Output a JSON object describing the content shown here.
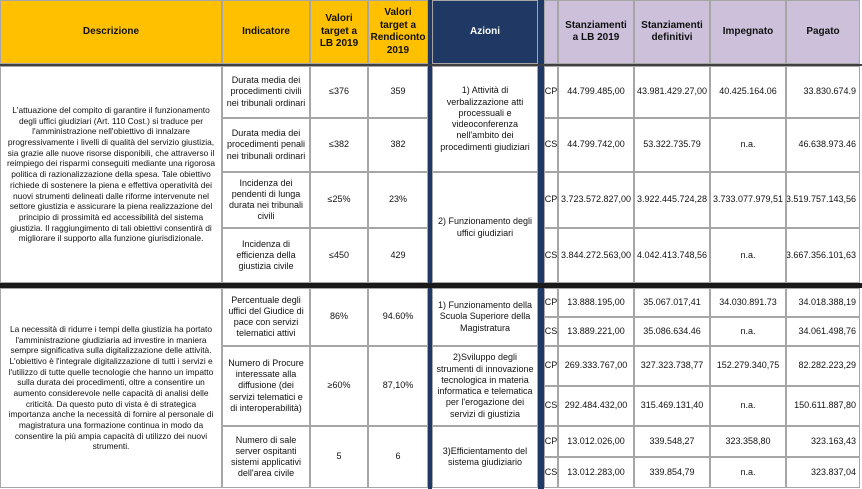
{
  "header": {
    "descrizione": "Descrizione",
    "indicatore": "Indicatore",
    "target_lb": "Valori target a LB 2019",
    "target_rendiconto": "Valori target a Rendiconto 2019",
    "azioni": "Azioni",
    "stanziamenti_lb": "Stanziamenti a LB 2019",
    "stanziamenti_definitivi": "Stanziamenti definitivi",
    "impegnato": "Impegnato",
    "pagato": "Pagato"
  },
  "sections": [
    {
      "descrizione": "L'attuazione del compito di garantire il funzionamento degli uffici giudiziari (Art. 110 Cost.) si traduce per l'amministrazione nell'obiettivo di innalzare progressivamente i livelli di qualità del servizio giustizia, sia grazie alle nuove risorse disponibili, che attraverso il reimpiego dei risparmi conseguiti mediante una rigorosa politica di razionalizzazione della spesa. Tale obiettivo richiede di sostenere la piena e effettiva operatività dei nuovi strumenti delineati dalle riforme intervenute nel settore giustizia e assicurare la piena realizzazione del principio di prossimità ed accessibilità del sistema giustizia. Il raggiungimento di tali obiettivi consentirà di migliorare il supporto alla funzione giurisdizionale.",
      "indicatori": [
        {
          "nome": "Durata media dei procedimenti civili nei tribunali ordinari",
          "lb": "≤376",
          "rendiconto": "359"
        },
        {
          "nome": "Durata media dei procedimenti penali nei tribunali ordinari",
          "lb": "≤382",
          "rendiconto": "382"
        },
        {
          "nome": "Incidenza dei pendenti di lunga durata nei tribunali civili",
          "lb": "≤25%",
          "rendiconto": "23%"
        },
        {
          "nome": "Incidenza di efficienza della giustizia civile",
          "lb": "≤450",
          "rendiconto": "429"
        }
      ],
      "azioni": [
        {
          "nome": "1) Attività di verbalizzazione atti processuali e videoconferenza nell'ambito dei procedimenti giudiziari",
          "righe": [
            [
              "CP",
              "44.799.485,00",
              "43.981.429.27,00",
              "40.425.164.06",
              "33.830.674.9"
            ],
            [
              "CS",
              "44.799.742,00",
              "53.322.735.79",
              "n.a.",
              "46.638.973.46"
            ]
          ]
        },
        {
          "nome": "2) Funzionamento degli uffici giudiziari",
          "righe": [
            [
              "CP",
              "3.723.572.827,00",
              "3.922.445.724,28",
              "3.733.077.979,51",
              "3.519.757.143,56"
            ],
            [
              "CS",
              "3.844.272.563,00",
              "4.042.413.748,56",
              "n.a.",
              "3.667.356.101,63"
            ]
          ]
        }
      ]
    },
    {
      "descrizione": "La necessità di ridurre i tempi della giustizia ha portato l'amministrazione giudiziaria ad investire in maniera sempre significativa sulla digitalizzazione delle attività. L'obiettivo è l'integrale digitalizzazione di tutti i servizi e l'utilizzo di tutte quelle tecnologie che hanno un impatto sulla durata dei procedimenti, oltre a consentire un aumento considerevole nelle capacità di analisi delle criticità. Da questo puto di vista è di strategica importanza anche la necessità di fornire al personale di magistratura una formazione continua in modo da consentire la più ampia capacità di utilizzo dei nuovi strumenti.",
      "indicatori": [
        {
          "nome": "Percentuale degli uffici del Giudice di pace con servizi telematici attivi",
          "lb": "86%",
          "rendiconto": "94.60%"
        },
        {
          "nome": "Numero di Procure interessate alla diffusione (dei servizi telematici e di interoperabilità)",
          "lb": "≥60%",
          "rendiconto": "87,10%"
        },
        {
          "nome": "Numero di sale server ospitanti sistemi applicativi dell'area civile",
          "lb": "5",
          "rendiconto": "6"
        }
      ],
      "azioni": [
        {
          "nome": "1) Funzionamento della Scuola Superiore della Magistratura",
          "righe": [
            [
              "CP",
              "13.888.195,00",
              "35.067.017,41",
              "34.030.891.73",
              "34.018.388,19"
            ],
            [
              "CS",
              "13.889.221,00",
              "35.086.634.46",
              "n.a.",
              "34.061.498,76"
            ]
          ]
        },
        {
          "nome": "2)Sviluppo degli strumenti di innovazione tecnologica in materia informatica e telematica per l'erogazione dei servizi di giustizia",
          "righe": [
            [
              "CP",
              "269.333.767,00",
              "327.323.738,77",
              "152.279.340,75",
              "82.282.223,29"
            ],
            [
              "CS",
              "292.484.432,00",
              "315.469.131,40",
              "n.a.",
              "150.611.887,80"
            ]
          ]
        },
        {
          "nome": "3)Efficientamento del sistema giudiziario",
          "righe": [
            [
              "CP",
              "13.012.026,00",
              "339.548,27",
              "323.358,80",
              "323.163,43"
            ],
            [
              "CS",
              "13.012.283,00",
              "339.854,79",
              "n.a.",
              "323.837,04"
            ]
          ]
        }
      ]
    }
  ]
}
